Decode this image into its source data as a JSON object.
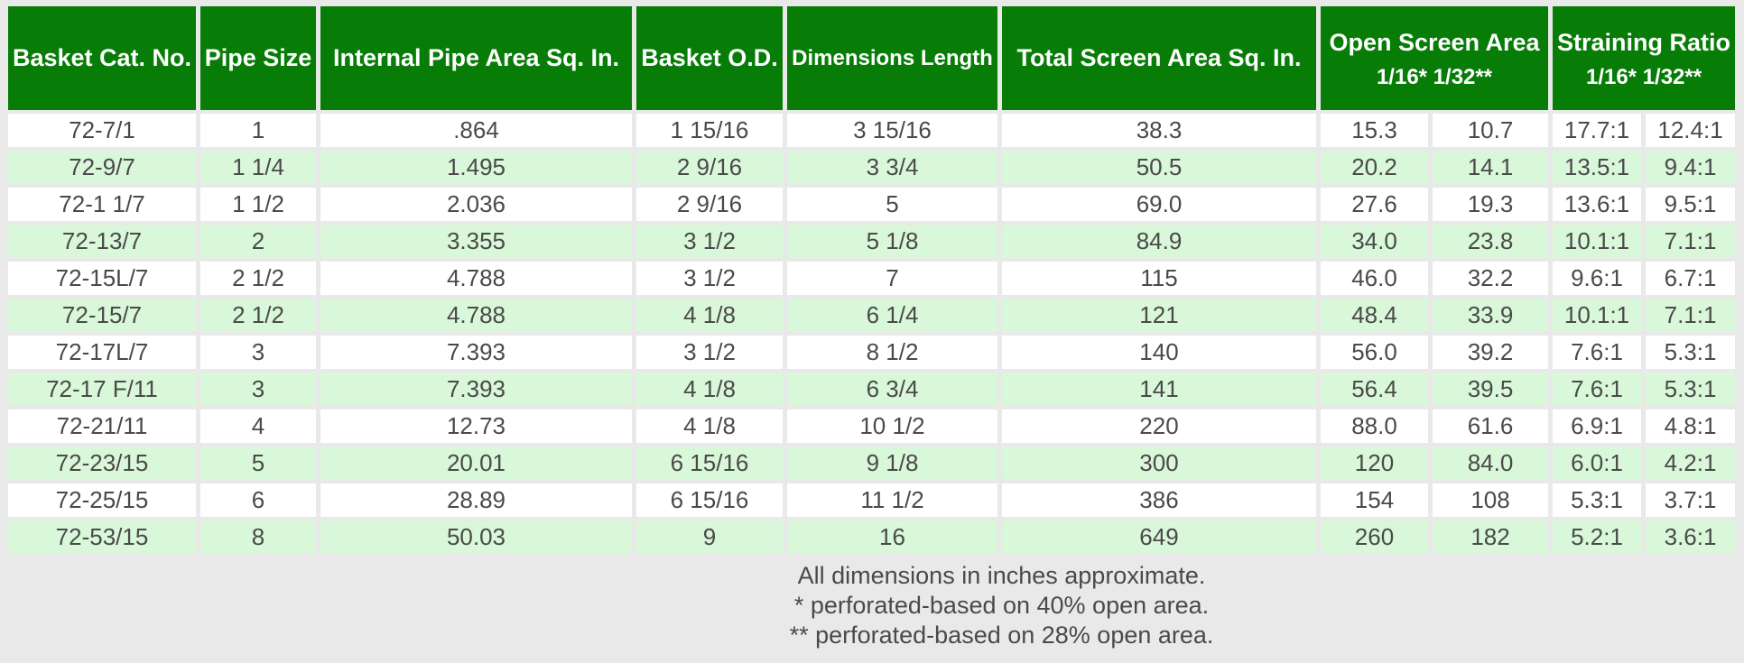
{
  "table": {
    "columns": [
      {
        "label": "Basket Cat. No."
      },
      {
        "label": "Pipe Size"
      },
      {
        "label": "Internal Pipe Area Sq. In."
      },
      {
        "label": "Basket O.D."
      },
      {
        "label": "Dimensions Length"
      },
      {
        "label": "Total Screen Area Sq. In."
      },
      {
        "label": "Open Screen Area",
        "sublabel": "1/16* 1/32**",
        "colspan": 2
      },
      {
        "label": "Straining Ratio",
        "sublabel": "1/16* 1/32**",
        "colspan": 2
      }
    ],
    "rows": [
      [
        "72-7/1",
        "1",
        ".864",
        "1 15/16",
        "3 15/16",
        "38.3",
        "15.3",
        "10.7",
        "17.7:1",
        "12.4:1"
      ],
      [
        "72-9/7",
        "1 1/4",
        "1.495",
        "2 9/16",
        "3 3/4",
        "50.5",
        "20.2",
        "14.1",
        "13.5:1",
        "9.4:1"
      ],
      [
        "72-1 1/7",
        "1 1/2",
        "2.036",
        "2 9/16",
        "5",
        "69.0",
        "27.6",
        "19.3",
        "13.6:1",
        "9.5:1"
      ],
      [
        "72-13/7",
        "2",
        "3.355",
        "3 1/2",
        "5 1/8",
        "84.9",
        "34.0",
        "23.8",
        "10.1:1",
        "7.1:1"
      ],
      [
        "72-15L/7",
        "2 1/2",
        "4.788",
        "3 1/2",
        "7",
        "115",
        "46.0",
        "32.2",
        "9.6:1",
        "6.7:1"
      ],
      [
        "72-15/7",
        "2 1/2",
        "4.788",
        "4 1/8",
        "6 1/4",
        "121",
        "48.4",
        "33.9",
        "10.1:1",
        "7.1:1"
      ],
      [
        "72-17L/7",
        "3",
        "7.393",
        "3 1/2",
        "8 1/2",
        "140",
        "56.0",
        "39.2",
        "7.6:1",
        "5.3:1"
      ],
      [
        "72-17 F/11",
        "3",
        "7.393",
        "4 1/8",
        "6 3/4",
        "141",
        "56.4",
        "39.5",
        "7.6:1",
        "5.3:1"
      ],
      [
        "72-21/11",
        "4",
        "12.73",
        "4 1/8",
        "10 1/2",
        "220",
        "88.0",
        "61.6",
        "6.9:1",
        "4.8:1"
      ],
      [
        "72-23/15",
        "5",
        "20.01",
        "6 15/16",
        "9 1/8",
        "300",
        "120",
        "84.0",
        "6.0:1",
        "4.2:1"
      ],
      [
        "72-25/15",
        "6",
        "28.89",
        "6 15/16",
        "11 1/2",
        "386",
        "154",
        "108",
        "5.3:1",
        "3.7:1"
      ],
      [
        "72-53/15",
        "8",
        "50.03",
        "9",
        "16",
        "649",
        "260",
        "182",
        "5.2:1",
        "3.6:1"
      ]
    ]
  },
  "footnotes": {
    "line1": "All dimensions in inches approximate.",
    "line2": "* perforated-based on 40% open area.",
    "line3": "** perforated-based on 28% open area."
  },
  "colors": {
    "header_bg": "#077c07",
    "header_text": "#ffffff",
    "row_bg": "#ffffff",
    "row_alt_bg": "#d9f7d9",
    "page_bg": "#e9e9e9",
    "body_text": "#4a4a4a"
  }
}
